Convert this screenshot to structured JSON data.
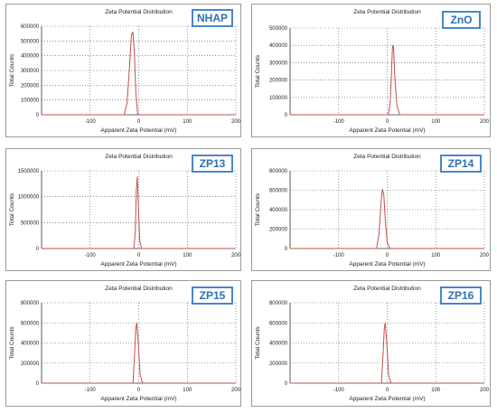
{
  "figure": {
    "panels": [
      {
        "label": "NHAP",
        "title": "Zeta Potential Distribution",
        "xlabel": "Apparent Zeta Potential (mV)",
        "ylabel": "Total Counts"
      },
      {
        "label": "ZnO",
        "title": "Zeta Potential Distribution",
        "xlabel": "Apparent Zeta Potential (mV)",
        "ylabel": "Total Counts"
      },
      {
        "label": "ZP13",
        "title": "Zeta Potential Distribution",
        "xlabel": "Apparent Zeta Potential (mV)",
        "ylabel": "Total Counts"
      },
      {
        "label": "ZP14",
        "title": "Zeta Potential Distribution",
        "xlabel": "Apparent Zeta Potential (mV)",
        "ylabel": "Total Counts"
      },
      {
        "label": "ZP15",
        "title": "Zeta Potential Distribution",
        "xlabel": "Apparent Zeta Potential (mV)",
        "ylabel": "Total Counts"
      },
      {
        "label": "ZP16",
        "title": "Zeta Potential Distribution",
        "xlabel": "Apparent Zeta Potential (mV)",
        "ylabel": "Total Counts"
      }
    ],
    "colors": {
      "curve": "#c0504d",
      "grid": "#555555",
      "badge_border": "#4a86c8",
      "badge_text": "#2e6fb5"
    }
  },
  "chart_data": [
    {
      "type": "line",
      "title": "Zeta Potential Distribution",
      "xlabel": "Apparent Zeta Potential (mV)",
      "ylabel": "Total Counts",
      "xlim": [
        -200,
        200
      ],
      "ylim": [
        0,
        600000
      ],
      "xticks": [
        -100,
        0,
        100,
        200
      ],
      "xtick_labels": [
        "-100",
        "0",
        "100",
        "200"
      ],
      "yticks": [
        0,
        100000,
        200000,
        300000,
        400000,
        500000,
        600000
      ],
      "ytick_labels": [
        "0",
        "100000",
        "200000",
        "300000",
        "400000",
        "500000",
        "600000"
      ],
      "grid": true,
      "series": [
        {
          "x": [
            -200,
            -40,
            -30,
            -24,
            -19,
            -15,
            -12,
            -9,
            -6,
            -2,
            5,
            200
          ],
          "y": [
            0,
            0,
            0,
            80000,
            320000,
            540000,
            560000,
            420000,
            150000,
            0,
            0,
            0
          ]
        }
      ]
    },
    {
      "type": "line",
      "title": "Zeta Potential Distribution",
      "xlabel": "Apparent Zeta Potential (mV)",
      "ylabel": "Total Counts",
      "xlim": [
        -200,
        200
      ],
      "ylim": [
        0,
        500000
      ],
      "xticks": [
        -100,
        0,
        100,
        200
      ],
      "xtick_labels": [
        "-100",
        "0",
        "100",
        "200"
      ],
      "yticks": [
        0,
        100000,
        200000,
        300000,
        400000,
        500000
      ],
      "ytick_labels": [
        "0",
        "100000",
        "200000",
        "300000",
        "400000",
        "500000"
      ],
      "grid": true,
      "series": [
        {
          "x": [
            -200,
            -5,
            2,
            6,
            9,
            11,
            13,
            16,
            20,
            26,
            200
          ],
          "y": [
            0,
            0,
            0,
            60000,
            250000,
            400000,
            390000,
            200000,
            50000,
            0,
            0
          ]
        }
      ]
    },
    {
      "type": "line",
      "title": "Zeta Potential Distribution",
      "xlabel": "Apparent Zeta Potential (mV)",
      "ylabel": "Total Counts",
      "xlim": [
        -200,
        200
      ],
      "ylim": [
        0,
        1500000
      ],
      "xticks": [
        -100,
        0,
        100,
        200
      ],
      "xtick_labels": [
        "-100",
        "0",
        "100",
        "200"
      ],
      "yticks": [
        0,
        500000,
        1000000,
        1500000
      ],
      "ytick_labels": [
        "0",
        "500000",
        "1000000",
        "1500000"
      ],
      "grid": true,
      "series": [
        {
          "x": [
            -200,
            -15,
            -10,
            -7,
            -5,
            -3,
            -1,
            2,
            6,
            200
          ],
          "y": [
            0,
            0,
            0,
            300000,
            1100000,
            1380000,
            900000,
            150000,
            0,
            0
          ]
        }
      ]
    },
    {
      "type": "line",
      "title": "Zeta Potential Distribution",
      "xlabel": "Apparent Zeta Potential (mV)",
      "ylabel": "Total Counts",
      "xlim": [
        -200,
        200
      ],
      "ylim": [
        0,
        800000
      ],
      "xticks": [
        -100,
        0,
        100,
        200
      ],
      "xtick_labels": [
        "-100",
        "0",
        "100",
        "200"
      ],
      "yticks": [
        0,
        200000,
        400000,
        600000,
        800000
      ],
      "ytick_labels": [
        "0",
        "200000",
        "400000",
        "600000",
        "800000"
      ],
      "grid": true,
      "series": [
        {
          "x": [
            -200,
            -30,
            -22,
            -17,
            -13,
            -10,
            -7,
            -4,
            0,
            6,
            200
          ],
          "y": [
            0,
            0,
            0,
            150000,
            450000,
            610000,
            560000,
            300000,
            60000,
            0,
            0
          ]
        }
      ]
    },
    {
      "type": "line",
      "title": "Zeta Potential Distribution",
      "xlabel": "Apparent Zeta Potential (mV)",
      "ylabel": "Total Counts",
      "xlim": [
        -200,
        200
      ],
      "ylim": [
        0,
        800000
      ],
      "xticks": [
        -100,
        0,
        100,
        200
      ],
      "xtick_labels": [
        "-100",
        "0",
        "100",
        "200"
      ],
      "yticks": [
        0,
        200000,
        400000,
        600000,
        800000
      ],
      "ytick_labels": [
        "0",
        "200000",
        "400000",
        "600000",
        "800000"
      ],
      "grid": true,
      "series": [
        {
          "x": [
            -200,
            -18,
            -12,
            -9,
            -6,
            -4,
            -1,
            3,
            8,
            200
          ],
          "y": [
            0,
            0,
            0,
            250000,
            550000,
            600000,
            400000,
            80000,
            0,
            0
          ]
        }
      ]
    },
    {
      "type": "line",
      "title": "Zeta Potential Distribution",
      "xlabel": "Apparent Zeta Potential (mV)",
      "ylabel": "Total Counts",
      "xlim": [
        -200,
        200
      ],
      "ylim": [
        0,
        800000
      ],
      "xticks": [
        -100,
        0,
        100,
        200
      ],
      "xtick_labels": [
        "-100",
        "0",
        "100",
        "200"
      ],
      "yticks": [
        0,
        200000,
        400000,
        600000,
        800000
      ],
      "ytick_labels": [
        "0",
        "200000",
        "400000",
        "600000",
        "800000"
      ],
      "grid": true,
      "series": [
        {
          "x": [
            -200,
            -18,
            -12,
            -9,
            -6,
            -4,
            -1,
            3,
            8,
            200
          ],
          "y": [
            0,
            0,
            0,
            250000,
            550000,
            600000,
            400000,
            80000,
            0,
            0
          ]
        }
      ]
    }
  ]
}
